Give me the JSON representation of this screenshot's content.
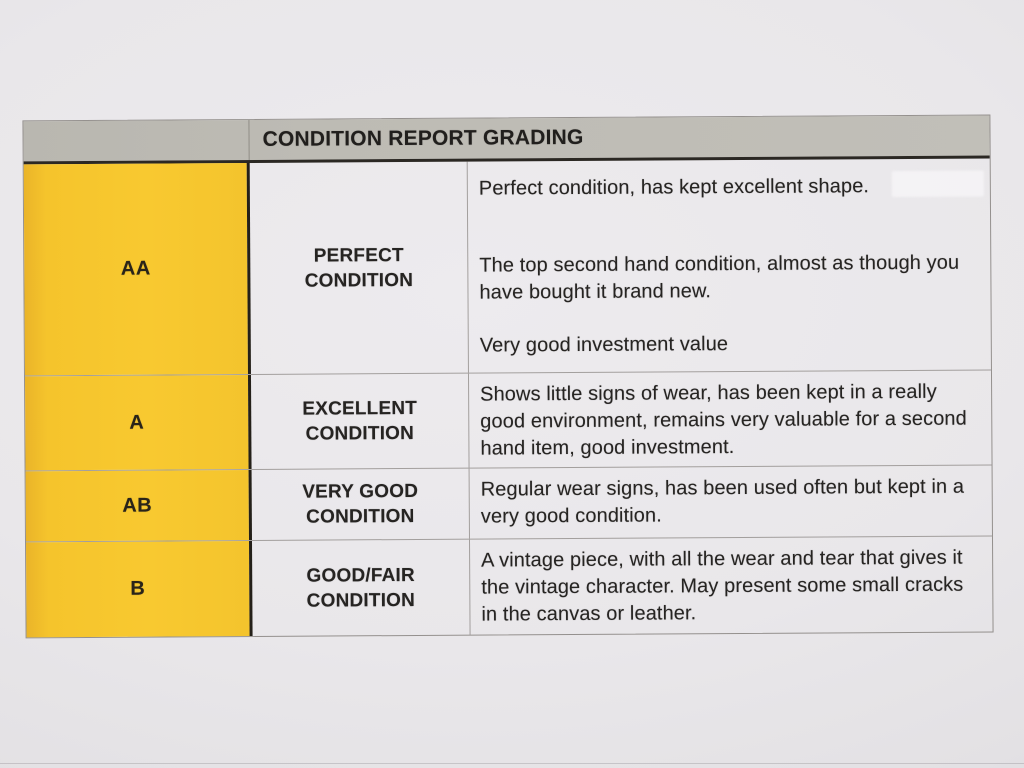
{
  "title": "CONDITION REPORT GRADING",
  "rows": [
    {
      "grade": "AA",
      "name": "PERFECT\nCONDITION",
      "paragraphs": [
        "Perfect condition, has kept excellent shape.",
        "The top second hand condition, almost as though you have bought it brand new.",
        "Very good investment value"
      ]
    },
    {
      "grade": "A",
      "name": "EXCELLENT\nCONDITION",
      "paragraphs": [
        "Shows little signs of wear, has been kept in a really good environment, remains very valuable for a second hand item, good investment."
      ]
    },
    {
      "grade": "AB",
      "name": "VERY GOOD\nCONDITION",
      "paragraphs": [
        "Regular wear signs, has been used often but kept in a very good condition."
      ]
    },
    {
      "grade": "B",
      "name": "GOOD/FAIR\nCONDITION",
      "paragraphs": [
        "A vintage piece, with all the wear and tear that gives it the vintage character. May present some small cracks in the canvas or leather."
      ]
    }
  ],
  "colors": {
    "grade_column_yellow": "#f8c930",
    "header_gray": "#bdbbb4",
    "paper": "#e9e7ea",
    "ink": "#262422"
  }
}
